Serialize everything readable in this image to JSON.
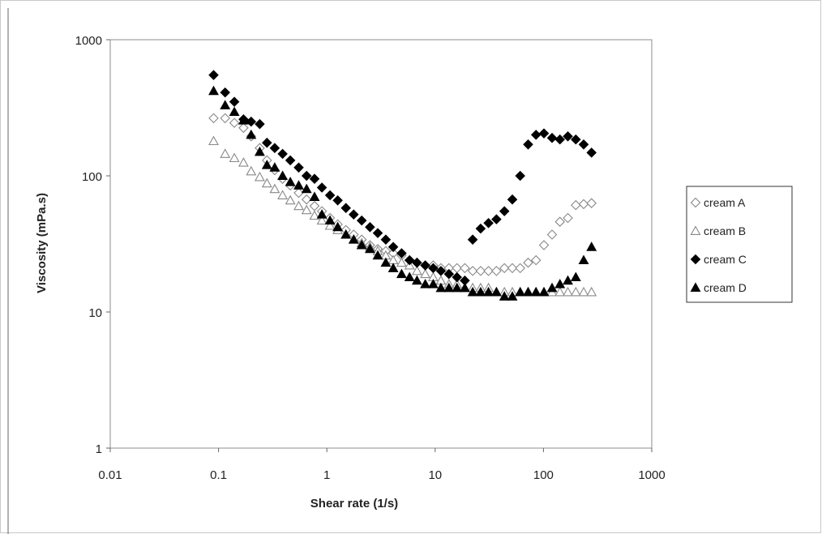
{
  "chart_data": {
    "type": "scatter",
    "title": "",
    "xlabel": "Shear rate (1/s)",
    "ylabel": "Viscosity (mPa.s)",
    "xscale": "log",
    "yscale": "log",
    "xlim": [
      0.01,
      1000
    ],
    "ylim": [
      1,
      1000
    ],
    "xticks": [
      "0.01",
      "0.1",
      "1",
      "10",
      "100",
      "1000"
    ],
    "yticks": [
      "1",
      "10",
      "100",
      "1000"
    ],
    "grid": false,
    "legend_position": "right",
    "series": [
      {
        "name": "cream A",
        "marker": "diamond-open",
        "color": "#888888",
        "x": [
          0.09,
          0.115,
          0.14,
          0.17,
          0.2,
          0.24,
          0.28,
          0.33,
          0.39,
          0.46,
          0.55,
          0.65,
          0.77,
          0.9,
          1.07,
          1.26,
          1.5,
          1.77,
          2.1,
          2.5,
          2.95,
          3.5,
          4.1,
          4.9,
          5.8,
          6.8,
          8.1,
          9.6,
          11.3,
          13.4,
          15.9,
          18.8,
          22.2,
          26.3,
          31.1,
          36.8,
          43.6,
          51.6,
          61,
          72.2,
          85.4,
          101,
          120,
          142,
          168,
          199,
          235,
          278
        ],
        "y": [
          265,
          265,
          245,
          225,
          195,
          160,
          130,
          110,
          95,
          85,
          75,
          67,
          60,
          55,
          49,
          44,
          40,
          37,
          34,
          31,
          29,
          28,
          27,
          26,
          24,
          23,
          22,
          22,
          21,
          21,
          21,
          21,
          20,
          20,
          20,
          20,
          21,
          21,
          21,
          23,
          24,
          31,
          37,
          46,
          49,
          61,
          62,
          63
        ]
      },
      {
        "name": "cream B",
        "marker": "triangle-open",
        "color": "#888888",
        "x": [
          0.09,
          0.115,
          0.14,
          0.17,
          0.2,
          0.24,
          0.28,
          0.33,
          0.39,
          0.46,
          0.55,
          0.65,
          0.77,
          0.9,
          1.07,
          1.26,
          1.5,
          1.77,
          2.1,
          2.5,
          2.95,
          3.5,
          4.1,
          4.9,
          5.8,
          6.8,
          8.1,
          9.6,
          11.3,
          13.4,
          15.9,
          18.8,
          22.2,
          26.3,
          31.1,
          36.8,
          43.6,
          51.6,
          61,
          72.2,
          85.4,
          101,
          120,
          142,
          168,
          199,
          235,
          278
        ],
        "y": [
          180,
          145,
          135,
          125,
          108,
          98,
          88,
          80,
          72,
          66,
          60,
          56,
          51,
          47,
          43,
          40,
          37,
          34,
          32,
          30,
          28,
          26,
          24,
          23,
          22,
          20,
          19,
          18,
          17,
          16,
          16,
          15,
          15,
          15,
          15,
          14,
          14,
          14,
          14,
          14,
          14,
          14,
          14,
          14,
          14,
          14,
          14,
          14
        ]
      },
      {
        "name": "cream C",
        "marker": "diamond-filled",
        "color": "#000000",
        "x": [
          0.09,
          0.115,
          0.14,
          0.17,
          0.2,
          0.24,
          0.28,
          0.33,
          0.39,
          0.46,
          0.55,
          0.65,
          0.77,
          0.9,
          1.07,
          1.26,
          1.5,
          1.77,
          2.1,
          2.5,
          2.95,
          3.5,
          4.1,
          4.9,
          5.8,
          6.8,
          8.1,
          9.6,
          11.3,
          13.4,
          15.9,
          18.8,
          22.2,
          26.3,
          31.1,
          36.8,
          43.6,
          51.6,
          61,
          72.2,
          85.4,
          101,
          120,
          142,
          168,
          199,
          235,
          278
        ],
        "y": [
          550,
          410,
          350,
          260,
          250,
          240,
          175,
          160,
          145,
          130,
          115,
          100,
          95,
          82,
          72,
          66,
          58,
          52,
          47,
          42,
          38,
          34,
          30,
          27,
          24,
          23,
          22,
          21,
          20,
          19,
          18,
          17,
          34,
          41,
          45,
          48,
          55,
          67,
          100,
          170,
          200,
          205,
          190,
          185,
          195,
          185,
          170,
          148
        ]
      },
      {
        "name": "cream D",
        "marker": "triangle-filled",
        "color": "#000000",
        "x": [
          0.09,
          0.115,
          0.14,
          0.17,
          0.2,
          0.24,
          0.28,
          0.33,
          0.39,
          0.46,
          0.55,
          0.65,
          0.77,
          0.9,
          1.07,
          1.26,
          1.5,
          1.77,
          2.1,
          2.5,
          2.95,
          3.5,
          4.1,
          4.9,
          5.8,
          6.8,
          8.1,
          9.6,
          11.3,
          13.4,
          15.9,
          18.8,
          22.2,
          26.3,
          31.1,
          36.8,
          43.6,
          51.6,
          61,
          72.2,
          85.4,
          101,
          120,
          142,
          168,
          199,
          235,
          278
        ],
        "y": [
          420,
          330,
          295,
          255,
          200,
          150,
          120,
          115,
          100,
          90,
          85,
          80,
          70,
          52,
          47,
          42,
          37,
          34,
          31,
          29,
          26,
          23,
          21,
          19,
          18,
          17,
          16,
          16,
          15,
          15,
          15,
          15,
          14,
          14,
          14,
          14,
          13,
          13,
          14,
          14,
          14,
          14,
          15,
          16,
          17,
          18,
          24,
          30
        ]
      }
    ]
  }
}
